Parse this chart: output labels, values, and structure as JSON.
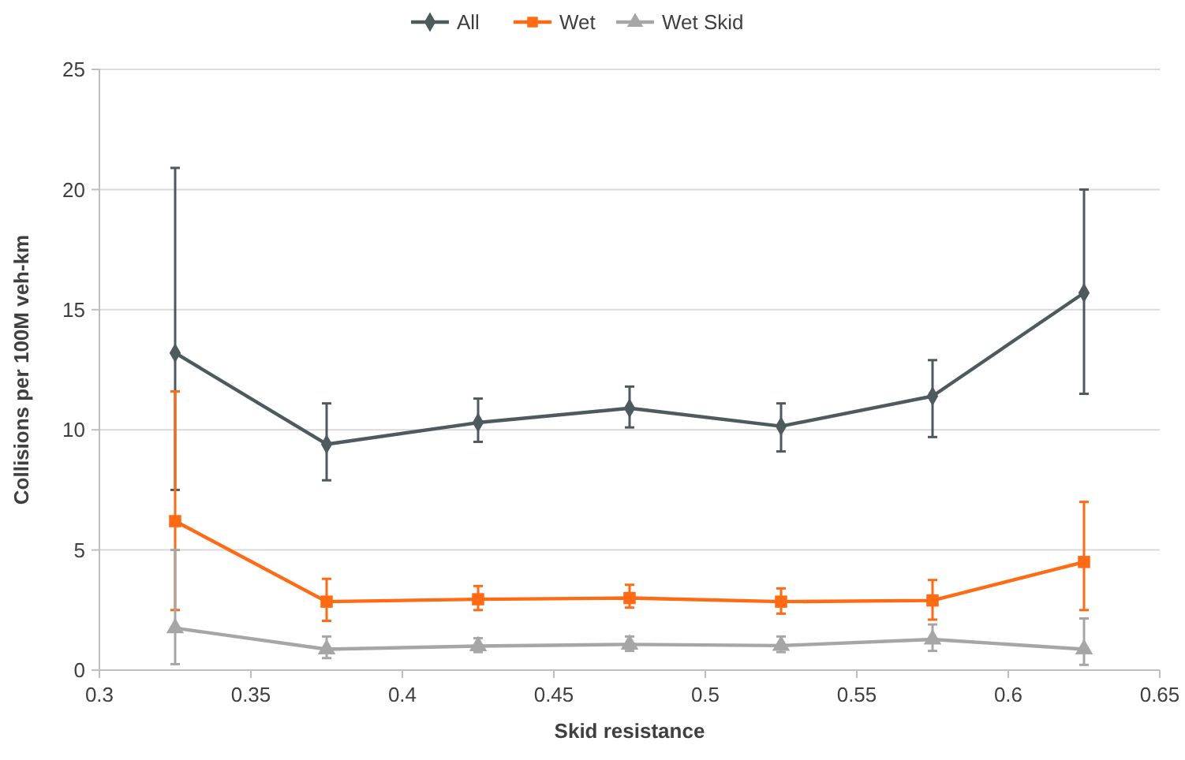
{
  "chart_data": {
    "type": "line",
    "xlabel": "Skid resistance",
    "ylabel": "Collisions per 100M veh-km",
    "xlim": [
      0.3,
      0.65
    ],
    "xticks": [
      0.3,
      0.35,
      0.4,
      0.45,
      0.5,
      0.55,
      0.6,
      0.65
    ],
    "ylim": [
      0,
      25
    ],
    "yticks": [
      0,
      5,
      10,
      15,
      20,
      25
    ],
    "grid": "y",
    "legend": "top",
    "x": [
      0.325,
      0.375,
      0.425,
      0.475,
      0.525,
      0.575,
      0.625
    ],
    "series": [
      {
        "name": "All",
        "color": "#4d5a5e",
        "marker": "diamond",
        "values": [
          13.2,
          9.4,
          10.3,
          10.9,
          10.15,
          11.4,
          15.7
        ],
        "errors": [
          [
            7.5,
            20.9
          ],
          [
            7.9,
            11.1
          ],
          [
            9.5,
            11.3
          ],
          [
            10.1,
            11.8
          ],
          [
            9.1,
            11.1
          ],
          [
            9.7,
            12.9
          ],
          [
            11.5,
            20
          ]
        ]
      },
      {
        "name": "Wet",
        "color": "#ff6a13",
        "marker": "square",
        "values": [
          6.2,
          2.85,
          2.95,
          3.0,
          2.85,
          2.9,
          4.5
        ],
        "errors": [
          [
            2.5,
            11.6
          ],
          [
            2.05,
            3.8
          ],
          [
            2.5,
            3.5
          ],
          [
            2.6,
            3.55
          ],
          [
            2.35,
            3.4
          ],
          [
            2.1,
            3.75
          ],
          [
            2.5,
            7
          ]
        ]
      },
      {
        "name": "Wet Skid",
        "color": "#a6a6a6",
        "marker": "triangle",
        "values": [
          1.75,
          0.87,
          1.0,
          1.07,
          1.02,
          1.28,
          0.87
        ],
        "errors": [
          [
            0.25,
            5
          ],
          [
            0.5,
            1.4
          ],
          [
            0.75,
            1.33
          ],
          [
            0.8,
            1.4
          ],
          [
            0.75,
            1.4
          ],
          [
            0.8,
            1.9
          ],
          [
            0.22,
            2.15
          ]
        ]
      }
    ]
  }
}
